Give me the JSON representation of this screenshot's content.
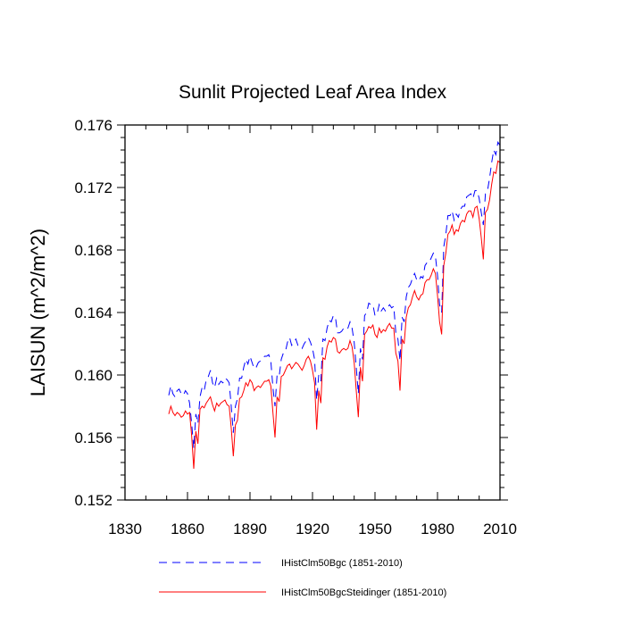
{
  "chart_data": {
    "type": "line",
    "title": "Sunlit Projected Leaf Area Index",
    "xlabel": "",
    "ylabel": "LAISUN  (m^2/m^2)",
    "xlim": [
      1830,
      2010
    ],
    "ylim": [
      0.152,
      0.176
    ],
    "xticks": [
      1830,
      1860,
      1890,
      1920,
      1950,
      1980,
      2010
    ],
    "xtick_labels": [
      "1830",
      "1860",
      "1890",
      "1920",
      "1950",
      "1980",
      "2010"
    ],
    "yticks": [
      0.152,
      0.156,
      0.16,
      0.164,
      0.168,
      0.172,
      0.176
    ],
    "ytick_labels": [
      "0.152",
      "0.156",
      "0.160",
      "0.164",
      "0.168",
      "0.172",
      "0.176"
    ],
    "grid": false,
    "legend_position": "bottom",
    "x": [
      1851,
      1852,
      1853,
      1854,
      1855,
      1856,
      1857,
      1858,
      1859,
      1860,
      1861,
      1862,
      1863,
      1864,
      1865,
      1866,
      1867,
      1868,
      1869,
      1870,
      1871,
      1872,
      1873,
      1874,
      1875,
      1876,
      1877,
      1878,
      1879,
      1880,
      1881,
      1882,
      1883,
      1884,
      1885,
      1886,
      1887,
      1888,
      1889,
      1890,
      1891,
      1892,
      1893,
      1894,
      1895,
      1896,
      1897,
      1898,
      1899,
      1900,
      1901,
      1902,
      1903,
      1904,
      1905,
      1906,
      1907,
      1908,
      1909,
      1910,
      1911,
      1912,
      1913,
      1914,
      1915,
      1916,
      1917,
      1918,
      1919,
      1920,
      1921,
      1922,
      1923,
      1924,
      1925,
      1926,
      1927,
      1928,
      1929,
      1930,
      1931,
      1932,
      1933,
      1934,
      1935,
      1936,
      1937,
      1938,
      1939,
      1940,
      1941,
      1942,
      1943,
      1944,
      1945,
      1946,
      1947,
      1948,
      1949,
      1950,
      1951,
      1952,
      1953,
      1954,
      1955,
      1956,
      1957,
      1958,
      1959,
      1960,
      1961,
      1962,
      1963,
      1964,
      1965,
      1966,
      1967,
      1968,
      1969,
      1970,
      1971,
      1972,
      1973,
      1974,
      1975,
      1976,
      1977,
      1978,
      1979,
      1980,
      1981,
      1982,
      1983,
      1984,
      1985,
      1986,
      1987,
      1988,
      1989,
      1990,
      1991,
      1992,
      1993,
      1994,
      1995,
      1996,
      1997,
      1998,
      1999,
      2000,
      2001,
      2002,
      2003,
      2004,
      2005,
      2006,
      2007,
      2008,
      2009,
      2010
    ],
    "series": [
      {
        "name": "IHistClm50Bgc (1851-2010)",
        "color": "#0000ff",
        "style": "dashed",
        "values": [
          0.1587,
          0.1593,
          0.1588,
          0.1586,
          0.159,
          0.1591,
          0.1588,
          0.1587,
          0.159,
          0.1588,
          0.1582,
          0.1569,
          0.1553,
          0.1575,
          0.1569,
          0.1586,
          0.1592,
          0.159,
          0.1597,
          0.1599,
          0.1603,
          0.1595,
          0.1592,
          0.1598,
          0.1594,
          0.1596,
          0.1595,
          0.1598,
          0.1597,
          0.1595,
          0.158,
          0.1563,
          0.158,
          0.1585,
          0.1598,
          0.1598,
          0.1605,
          0.161,
          0.1607,
          0.1612,
          0.1608,
          0.1604,
          0.1605,
          0.1608,
          0.1609,
          0.161,
          0.1612,
          0.1612,
          0.1613,
          0.1609,
          0.1592,
          0.158,
          0.16,
          0.1599,
          0.161,
          0.1614,
          0.1615,
          0.1621,
          0.1624,
          0.1619,
          0.1621,
          0.1623,
          0.1619,
          0.1619,
          0.1617,
          0.162,
          0.1622,
          0.1624,
          0.1621,
          0.1617,
          0.161,
          0.1584,
          0.16,
          0.1596,
          0.1623,
          0.1622,
          0.163,
          0.1635,
          0.1634,
          0.1638,
          0.1637,
          0.1627,
          0.1627,
          0.1628,
          0.163,
          0.1629,
          0.163,
          0.1634,
          0.163,
          0.1621,
          0.1605,
          0.1588,
          0.1617,
          0.161,
          0.1638,
          0.164,
          0.1646,
          0.1645,
          0.1645,
          0.1638,
          0.1639,
          0.1645,
          0.1641,
          0.1643,
          0.1641,
          0.1643,
          0.1645,
          0.1643,
          0.1644,
          0.1627,
          0.1623,
          0.1609,
          0.1637,
          0.1634,
          0.165,
          0.1656,
          0.1658,
          0.1662,
          0.1665,
          0.1661,
          0.166,
          0.1663,
          0.1662,
          0.167,
          0.1672,
          0.1672,
          0.1675,
          0.1678,
          0.1676,
          0.1664,
          0.1645,
          0.164,
          0.1682,
          0.169,
          0.1702,
          0.1702,
          0.1705,
          0.1699,
          0.1703,
          0.1701,
          0.1706,
          0.1708,
          0.1708,
          0.1714,
          0.1715,
          0.1716,
          0.1713,
          0.1718,
          0.1718,
          0.1713,
          0.1704,
          0.1696,
          0.1716,
          0.1718,
          0.1726,
          0.1736,
          0.1744,
          0.1741,
          0.1749,
          0.1747
        ]
      },
      {
        "name": "IHistClm50BgcSteidinger (1851-2010)",
        "color": "#ff0000",
        "style": "solid",
        "values": [
          0.1575,
          0.158,
          0.1576,
          0.1574,
          0.1576,
          0.1575,
          0.1573,
          0.1574,
          0.1577,
          0.1575,
          0.1576,
          0.1561,
          0.154,
          0.1564,
          0.1556,
          0.1578,
          0.158,
          0.1579,
          0.1582,
          0.1584,
          0.1586,
          0.1581,
          0.1577,
          0.1582,
          0.158,
          0.1582,
          0.1583,
          0.1584,
          0.1581,
          0.158,
          0.1566,
          0.1548,
          0.1568,
          0.1571,
          0.1585,
          0.1586,
          0.159,
          0.1595,
          0.1593,
          0.1597,
          0.1595,
          0.159,
          0.1592,
          0.1593,
          0.1592,
          0.1594,
          0.1596,
          0.1596,
          0.1597,
          0.1593,
          0.1576,
          0.156,
          0.1586,
          0.1583,
          0.1599,
          0.16,
          0.1603,
          0.1606,
          0.1607,
          0.1604,
          0.1606,
          0.1608,
          0.1607,
          0.1605,
          0.1603,
          0.1606,
          0.161,
          0.1612,
          0.1609,
          0.1603,
          0.1595,
          0.1565,
          0.159,
          0.1582,
          0.1611,
          0.161,
          0.1618,
          0.1622,
          0.1621,
          0.1624,
          0.1623,
          0.1615,
          0.1614,
          0.1616,
          0.1617,
          0.1616,
          0.1617,
          0.1622,
          0.1618,
          0.1608,
          0.159,
          0.1573,
          0.1605,
          0.1596,
          0.1626,
          0.1628,
          0.1631,
          0.163,
          0.1632,
          0.1626,
          0.1624,
          0.163,
          0.1627,
          0.1629,
          0.1628,
          0.1631,
          0.1633,
          0.163,
          0.163,
          0.1614,
          0.1609,
          0.159,
          0.1623,
          0.162,
          0.1637,
          0.1643,
          0.1645,
          0.165,
          0.1654,
          0.165,
          0.1648,
          0.1651,
          0.1652,
          0.1659,
          0.1661,
          0.1661,
          0.1664,
          0.1668,
          0.1665,
          0.1651,
          0.1634,
          0.1626,
          0.167,
          0.1678,
          0.169,
          0.1692,
          0.1696,
          0.169,
          0.1693,
          0.1692,
          0.1697,
          0.1699,
          0.1698,
          0.1703,
          0.1705,
          0.1705,
          0.1701,
          0.1707,
          0.1708,
          0.17,
          0.1688,
          0.1674,
          0.1704,
          0.1706,
          0.1712,
          0.1722,
          0.173,
          0.1729,
          0.1737,
          0.1736
        ]
      }
    ]
  }
}
